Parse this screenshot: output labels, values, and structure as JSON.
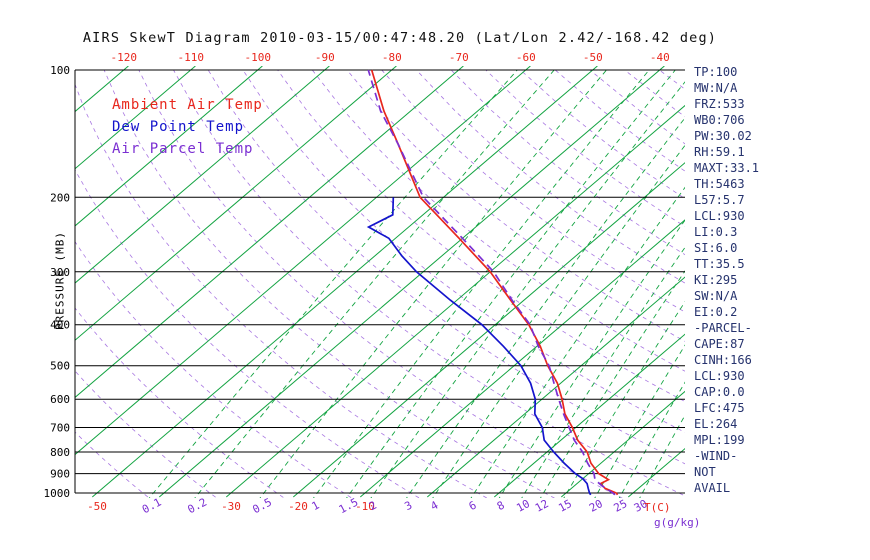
{
  "header": {
    "title": "AIRS SkewT Diagram 2010-03-15/00:47:48.20 (Lat/Lon 2.42/-168.42 deg)"
  },
  "legend": {
    "items": [
      {
        "label": "Ambient Air Temp"
      },
      {
        "label": "Dew Point Temp"
      },
      {
        "label": "Air Parcel Temp"
      }
    ]
  },
  "stats": {
    "lines": [
      "TP:100",
      "MW:N/A",
      "FRZ:533",
      "WB0:706",
      "PW:30.02",
      "RH:59.1",
      "MAXT:33.1",
      "TH:5463",
      "L57:5.7",
      "LCL:930",
      "LI:0.3",
      "SI:6.0",
      "TT:35.5",
      "KI:295",
      "SW:N/A",
      "EI:0.2",
      "-PARCEL-",
      "CAPE:87",
      "CINH:166",
      "LCL:930",
      "CAP:0.0",
      "LFC:475",
      "EL:264",
      "MPL:199",
      "-WIND-",
      "NOT",
      "AVAIL"
    ]
  },
  "chart_data": {
    "type": "skewt-log-p",
    "title": "AIRS SkewT Diagram 2010-03-15/00:47:48.20 (Lat/Lon 2.42/-168.42 deg)",
    "axes": {
      "pressure_label": "PRESSURE (MB)",
      "pressure_ticks": [
        100,
        200,
        300,
        400,
        500,
        600,
        700,
        800,
        900,
        1000
      ],
      "pressure_range": [
        100,
        1000
      ],
      "temp_unit_label": "T(C)",
      "mixing_unit_label": "g(g/kg)",
      "top_temp_labels": [
        -120,
        -110,
        -100,
        -90,
        -80,
        -70,
        -60,
        -50,
        -40
      ],
      "bottom_temp_labels": [
        -50,
        -30,
        -20,
        -10
      ]
    },
    "isotherms": {
      "min": -120,
      "max": 30,
      "step": 10
    },
    "dry_adiabats_theta_kelvin": {
      "min": 230,
      "max": 460,
      "step": 10
    },
    "mixing_ratio_lines_g_kg": [
      0.1,
      0.2,
      0.5,
      1,
      1.5,
      2,
      3,
      4,
      6,
      8,
      10,
      12,
      15,
      20,
      25,
      30
    ],
    "series": [
      {
        "name": "Ambient Air Temp",
        "color": "#e8271d",
        "style": "solid",
        "pressure_mb": [
          1010,
          1000,
          975,
          950,
          930,
          900,
          850,
          800,
          750,
          700,
          650,
          600,
          550,
          500,
          450,
          400,
          350,
          300,
          250,
          200,
          150,
          125,
          100
        ],
        "temp_c": [
          28,
          27.5,
          25,
          23.5,
          24,
          21.5,
          18.5,
          16,
          12.5,
          9.5,
          6,
          3,
          -0.5,
          -5,
          -9.5,
          -15,
          -22,
          -30,
          -40.5,
          -53.5,
          -66,
          -74,
          -83
        ]
      },
      {
        "name": "Dew Point Temp",
        "color": "#1414cc",
        "style": "solid",
        "pressure_mb": [
          1010,
          1000,
          975,
          950,
          925,
          900,
          850,
          800,
          750,
          700,
          650,
          600,
          550,
          500,
          450,
          400,
          350,
          300,
          275,
          250,
          235,
          220,
          200
        ],
        "temp_c": [
          24,
          23.5,
          22.5,
          21.5,
          20,
          18,
          14.5,
          11,
          7.5,
          5,
          1.5,
          -1,
          -4.5,
          -9,
          -15,
          -22,
          -31,
          -41,
          -46,
          -51,
          -56,
          -54.5,
          -57.5
        ]
      },
      {
        "name": "Air Parcel Temp",
        "color": "#7b2fd2",
        "style": "dashed",
        "pressure_mb": [
          1010,
          1000,
          960,
          930,
          900,
          850,
          800,
          750,
          700,
          650,
          600,
          550,
          500,
          450,
          400,
          350,
          300,
          250,
          200,
          150,
          125,
          100
        ],
        "temp_c": [
          27.6,
          27,
          24,
          22,
          20.8,
          18,
          15.3,
          12,
          9,
          5.8,
          2.5,
          -1,
          -4.8,
          -9.8,
          -14.8,
          -21.8,
          -29.5,
          -40,
          -53,
          -66,
          -74.5,
          -83.5
        ]
      }
    ],
    "colors": {
      "isotherm": "#12a341",
      "mixing_ratio": "#12a341",
      "dry_adiabat": "#7b2fd2",
      "pressure_line": "#000000",
      "axis_text_temp": "#e8271d",
      "axis_text_mixing": "#7b2fd2",
      "axis_text_pressure": "#000000",
      "stats_text": "#26336e"
    }
  }
}
